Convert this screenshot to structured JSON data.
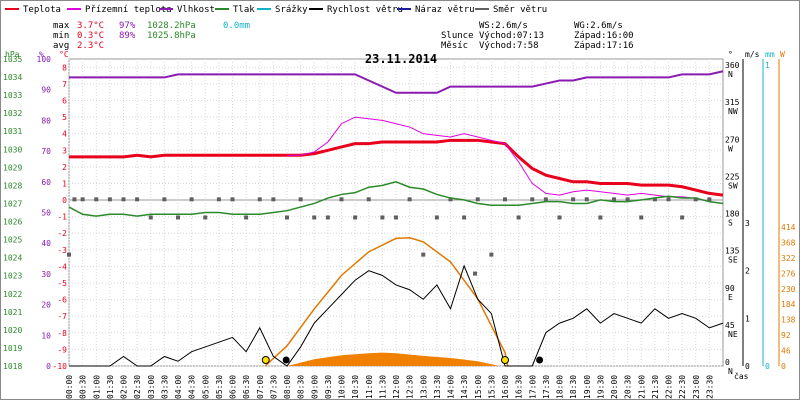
{
  "chart_data": {
    "type": "line",
    "title": "23.11.2014",
    "legend": [
      {
        "name": "Teplota",
        "color": "#e8001c"
      },
      {
        "name": "Přízemní teplota",
        "color": "#e000e0"
      },
      {
        "name": "Vlhkost",
        "color": "#8a1ab0"
      },
      {
        "name": "Tlak",
        "color": "#2a8a2a"
      },
      {
        "name": "Srážky",
        "color": "#14b4c8"
      },
      {
        "name": "Rychlost větru",
        "color": "#000000"
      },
      {
        "name": "Náraz větru",
        "color": "#1a1a9a"
      },
      {
        "name": "Směr větru",
        "color": "#606060"
      }
    ],
    "stats": {
      "max_label": "max",
      "min_label": "min",
      "avg_label": "avg",
      "max_temp": "3.7°C",
      "max_hum": "97%",
      "max_press": "1028.2hPa",
      "max_rain": "0.0mm",
      "min_temp": "0.3°C",
      "min_hum": "89%",
      "min_press": "1025.8hPa",
      "avg_temp": "2.3°C",
      "ws": "WS:2.6m/s",
      "wg": "WG:2.6m/s",
      "sun_label": "Slunce",
      "sun_rise": "Východ:07:13",
      "sun_set": "Západ:16:00",
      "moon_label": "Měsíc",
      "moon_rise": "Východ:7:58",
      "moon_set": "Západ:17:16"
    },
    "axes": {
      "hpa_title": "hPa",
      "pct_title": "%",
      "temp_title": "°C",
      "deg_title": "°",
      "ms_title": "m/s",
      "mm_title": "mm",
      "w_title": "W",
      "x_title": "čas",
      "hpa_ticks": [
        "1035",
        "1034",
        "1033",
        "1032",
        "1031",
        "1030",
        "1029",
        "1028",
        "1027",
        "1026",
        "1025",
        "1024",
        "1023",
        "1022",
        "1021",
        "1020",
        "1019",
        "1018"
      ],
      "pct_ticks": [
        "100",
        "90",
        "80",
        "70",
        "60",
        "50",
        "40",
        "30",
        "20",
        "10",
        "0"
      ],
      "temp_ticks": [
        "8",
        "7",
        "6",
        "5",
        "4",
        "3",
        "2",
        "1",
        "0",
        "-1",
        "-2",
        "-3",
        "-4",
        "-5",
        "-6",
        "-7",
        "-8",
        "-9",
        "-10"
      ],
      "deg_ticks": [
        "360 N",
        "315 NW",
        "270 W",
        "225 SW",
        "180 S",
        "135 SE",
        "90 E",
        "45 NE",
        "0 N"
      ],
      "ms_ticks": [
        "3",
        "2",
        "1",
        "0"
      ],
      "mm_ticks": [
        "1",
        "0"
      ],
      "w_ticks": [
        "414",
        "368",
        "322",
        "276",
        "230",
        "184",
        "138",
        "92",
        "46",
        "0"
      ],
      "x_ticks": [
        "00:00",
        "00:30",
        "01:00",
        "01:30",
        "02:00",
        "02:30",
        "03:00",
        "03:30",
        "04:00",
        "04:30",
        "05:00",
        "05:30",
        "06:00",
        "06:30",
        "07:00",
        "07:30",
        "08:00",
        "08:30",
        "09:00",
        "09:30",
        "10:00",
        "10:30",
        "11:00",
        "11:30",
        "12:00",
        "12:30",
        "13:00",
        "13:30",
        "14:00",
        "14:30",
        "15:00",
        "15:30",
        "16:00",
        "16:30",
        "17:00",
        "17:30",
        "18:00",
        "18:30",
        "19:00",
        "19:30",
        "20:00",
        "20:30",
        "21:00",
        "21:30",
        "22:00",
        "22:30",
        "23:00",
        "23:30"
      ],
      "temp_range": [
        -10,
        8.5
      ],
      "hum_range": [
        0,
        100
      ],
      "press_range": [
        1018,
        1035
      ]
    },
    "x_hours": [
      0,
      0.5,
      1,
      1.5,
      2,
      2.5,
      3,
      3.5,
      4,
      4.5,
      5,
      5.5,
      6,
      6.5,
      7,
      7.5,
      8,
      8.5,
      9,
      9.5,
      10,
      10.5,
      11,
      11.5,
      12,
      12.5,
      13,
      13.5,
      14,
      14.5,
      15,
      15.5,
      16,
      16.5,
      17,
      17.5,
      18,
      18.5,
      19,
      19.5,
      20,
      20.5,
      21,
      21.5,
      22,
      22.5,
      23,
      23.5,
      24
    ],
    "series": [
      {
        "name": "Teplota",
        "color": "#e8001c",
        "axis": "temp",
        "values": [
          2.6,
          2.6,
          2.6,
          2.6,
          2.6,
          2.7,
          2.6,
          2.7,
          2.7,
          2.7,
          2.7,
          2.7,
          2.7,
          2.7,
          2.7,
          2.7,
          2.7,
          2.7,
          2.8,
          3.0,
          3.2,
          3.4,
          3.4,
          3.5,
          3.5,
          3.5,
          3.5,
          3.5,
          3.6,
          3.6,
          3.6,
          3.5,
          3.4,
          2.6,
          1.9,
          1.5,
          1.3,
          1.1,
          1.1,
          1.0,
          1.0,
          1.0,
          0.9,
          0.9,
          0.9,
          0.8,
          0.6,
          0.4,
          0.3
        ]
      },
      {
        "name": "Přízemní teplota",
        "color": "#e000e0",
        "axis": "temp",
        "values": [
          null,
          null,
          null,
          null,
          null,
          null,
          null,
          null,
          null,
          null,
          null,
          null,
          null,
          null,
          null,
          null,
          2.7,
          2.7,
          2.9,
          3.5,
          4.6,
          5.0,
          4.9,
          4.8,
          4.6,
          4.4,
          4.0,
          3.9,
          3.8,
          4.0,
          3.8,
          3.6,
          3.4,
          2.3,
          1.0,
          0.4,
          0.3,
          0.5,
          0.6,
          0.5,
          0.4,
          0.3,
          0.4,
          0.3,
          0.2,
          0.2,
          0.1,
          -0.1,
          -0.2
        ]
      },
      {
        "name": "Vlhkost",
        "color": "#8a1ab0",
        "axis": "hum",
        "values": [
          94,
          94,
          94,
          94,
          94,
          94,
          94,
          94,
          95,
          95,
          95,
          95,
          95,
          95,
          95,
          95,
          95,
          95,
          95,
          95,
          95,
          95,
          93,
          91,
          89,
          89,
          89,
          89,
          91,
          91,
          91,
          91,
          91,
          91,
          91,
          92,
          93,
          93,
          94,
          94,
          94,
          94,
          94,
          94,
          94,
          95,
          95,
          95,
          96
        ]
      },
      {
        "name": "Tlak",
        "color": "#2a8a2a",
        "axis": "press",
        "values": [
          1026.8,
          1026.4,
          1026.3,
          1026.4,
          1026.4,
          1026.3,
          1026.4,
          1026.4,
          1026.4,
          1026.4,
          1026.5,
          1026.5,
          1026.4,
          1026.4,
          1026.4,
          1026.5,
          1026.6,
          1026.8,
          1027.0,
          1027.3,
          1027.5,
          1027.6,
          1027.9,
          1028.0,
          1028.2,
          1027.9,
          1027.8,
          1027.5,
          1027.3,
          1027.2,
          1027.0,
          1026.9,
          1026.9,
          1026.9,
          1027.0,
          1027.1,
          1027.1,
          1027.0,
          1027.0,
          1027.2,
          1027.1,
          1027.1,
          1027.2,
          1027.3,
          1027.4,
          1027.3,
          1027.3,
          1027.1,
          1027.0
        ]
      }
    ],
    "wind_speed": [
      0,
      0,
      0,
      0,
      0.2,
      0,
      0,
      0.2,
      0.1,
      0.3,
      0.4,
      0.5,
      0.6,
      0.3,
      0.8,
      0.2,
      0,
      0.4,
      0.9,
      1.2,
      1.5,
      1.8,
      2.0,
      1.9,
      1.7,
      1.6,
      1.4,
      1.7,
      1.2,
      2.1,
      1.4,
      1.1,
      0,
      0,
      0,
      0.7,
      0.9,
      1.0,
      1.2,
      0.9,
      1.1,
      1.0,
      0.9,
      1.2,
      1.0,
      1.1,
      1.0,
      0.8,
      0.9
    ],
    "wind_dir_points": [
      [
        0.2,
        202
      ],
      [
        0.5,
        202
      ],
      [
        1.0,
        202
      ],
      [
        1.5,
        202
      ],
      [
        2.0,
        202
      ],
      [
        2.5,
        202
      ],
      [
        3.0,
        180
      ],
      [
        3.5,
        202
      ],
      [
        4.0,
        180
      ],
      [
        4.5,
        202
      ],
      [
        5.0,
        180
      ],
      [
        5.5,
        202
      ],
      [
        6.0,
        202
      ],
      [
        6.5,
        180
      ],
      [
        7.0,
        202
      ],
      [
        7.5,
        202
      ],
      [
        8.0,
        180
      ],
      [
        8.5,
        202
      ],
      [
        9.0,
        180
      ],
      [
        9.5,
        180
      ],
      [
        10.0,
        202
      ],
      [
        10.5,
        180
      ],
      [
        11.0,
        202
      ],
      [
        11.5,
        180
      ],
      [
        12.0,
        180
      ],
      [
        12.5,
        202
      ],
      [
        13.0,
        135
      ],
      [
        13.5,
        180
      ],
      [
        14.0,
        202
      ],
      [
        14.5,
        180
      ],
      [
        15.0,
        202
      ],
      [
        15.5,
        135
      ],
      [
        16.0,
        202
      ],
      [
        16.5,
        180
      ],
      [
        17.0,
        202
      ],
      [
        17.5,
        202
      ],
      [
        18.0,
        180
      ],
      [
        18.5,
        202
      ],
      [
        19.0,
        202
      ],
      [
        19.5,
        180
      ],
      [
        20.0,
        202
      ],
      [
        20.5,
        202
      ],
      [
        21.0,
        180
      ],
      [
        21.5,
        202
      ],
      [
        22.0,
        202
      ],
      [
        22.5,
        180
      ],
      [
        23.0,
        202
      ],
      [
        23.5,
        202
      ],
      [
        0.0,
        135
      ],
      [
        14.9,
        112
      ]
    ],
    "solar": {
      "curve": [
        [
          7.2,
          0
        ],
        [
          8,
          60
        ],
        [
          9,
          170
        ],
        [
          10,
          270
        ],
        [
          11,
          340
        ],
        [
          12,
          380
        ],
        [
          12.5,
          382
        ],
        [
          13,
          370
        ],
        [
          14,
          310
        ],
        [
          15,
          200
        ],
        [
          16,
          40
        ],
        [
          16.1,
          0
        ]
      ],
      "measured": [
        [
          8,
          0
        ],
        [
          9,
          20
        ],
        [
          10,
          32
        ],
        [
          11,
          38
        ],
        [
          11.5,
          40
        ],
        [
          12,
          38
        ],
        [
          13,
          30
        ],
        [
          14,
          24
        ],
        [
          15,
          14
        ],
        [
          15.8,
          0
        ]
      ],
      "max": 414
    },
    "markers": {
      "sunrise": 7.22,
      "sunset": 16.0,
      "moonrise": 7.97,
      "moonset": 17.27
    }
  }
}
